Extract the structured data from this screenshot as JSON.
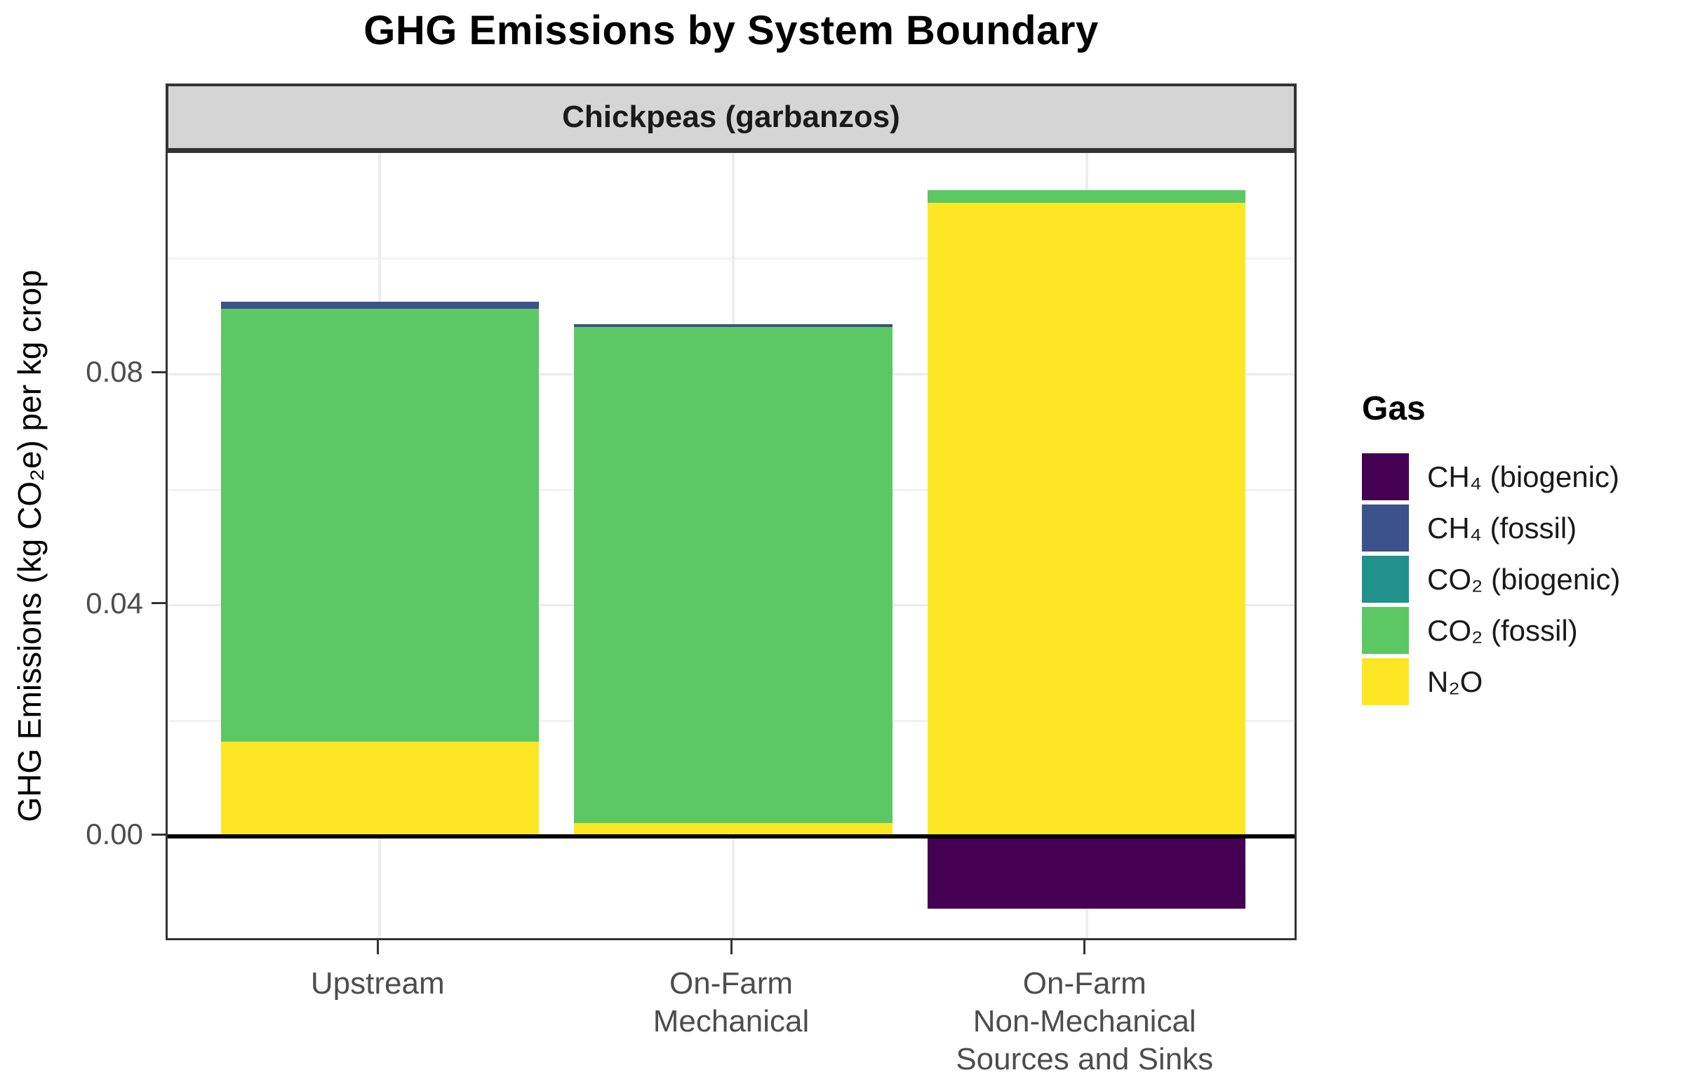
{
  "chart_data": {
    "type": "bar",
    "stacked": true,
    "title": "GHG Emissions by System Boundary",
    "facet_label": "Chickpeas (garbanzos)",
    "ylabel": "GHG Emissions (kg CO₂e) per kg crop",
    "xlabel": "",
    "ylim": [
      -0.0183,
      0.1183
    ],
    "yticks_major": [
      0.0,
      0.04,
      0.08
    ],
    "ytick_labels": [
      "0.00",
      "0.04",
      "0.08"
    ],
    "yticks_minor": [
      0.02,
      0.06,
      0.1
    ],
    "grid": true,
    "legend_position": "right",
    "legend_title": "Gas",
    "gases": [
      {
        "name": "CH₄ (biogenic)",
        "color": "#440154"
      },
      {
        "name": "CH₄ (fossil)",
        "color": "#3B528B"
      },
      {
        "name": "CO₂ (biogenic)",
        "color": "#21918C"
      },
      {
        "name": "CO₂ (fossil)",
        "color": "#5CC863"
      },
      {
        "name": "N₂O",
        "color": "#FDE725"
      }
    ],
    "categories": [
      {
        "label_lines": [
          "Upstream"
        ],
        "segments": [
          {
            "gas": "N₂O",
            "value": 0.0164
          },
          {
            "gas": "CO₂ (fossil)",
            "value": 0.075
          },
          {
            "gas": "CH₄ (fossil)",
            "value": 0.0012
          }
        ]
      },
      {
        "label_lines": [
          "On-Farm",
          "Mechanical"
        ],
        "segments": [
          {
            "gas": "N₂O",
            "value": 0.0023
          },
          {
            "gas": "CO₂ (fossil)",
            "value": 0.0859
          },
          {
            "gas": "CH₄ (fossil)",
            "value": 0.0005
          }
        ]
      },
      {
        "label_lines": [
          "On-Farm",
          "Non-Mechanical",
          "Sources and Sinks"
        ],
        "segments": [
          {
            "gas": "N₂O",
            "value": 0.1097
          },
          {
            "gas": "CO₂ (fossil)",
            "value": 0.0022
          },
          {
            "gas": "CH₄ (biogenic)",
            "value": -0.0125
          }
        ]
      }
    ]
  }
}
